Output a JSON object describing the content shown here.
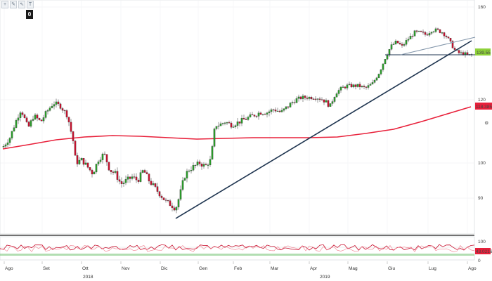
{
  "toolbar": {
    "icons": [
      "plus-icon",
      "pencil-icon",
      "pointer-icon",
      "text-icon"
    ],
    "glyphs": [
      "+",
      "✎",
      "⇖",
      "T"
    ],
    "badge": "0"
  },
  "chart_data": {
    "type": "candlestick",
    "y_axis_ticks": [
      "160",
      "120",
      "100",
      "90"
    ],
    "y_axis_values": [
      160,
      120,
      100,
      90
    ],
    "x_axis_months": [
      "Ago",
      "Set",
      "Ott",
      "Nov",
      "Dic",
      "Gen",
      "Feb",
      "Mar",
      "Apr",
      "Mag",
      "Giu",
      "Lug",
      "Ago"
    ],
    "x_axis_years": [
      "2018",
      "2019"
    ],
    "price_label": "139.55",
    "ma_label": "118.3853",
    "osc_ticks": [
      "100",
      "0"
    ],
    "osc_label": "43.0216",
    "colors": {
      "up": "#2a9d2a",
      "down": "#c8102e",
      "ma": "#e8203a",
      "trend": "#1f3550",
      "hline": "#1f3550",
      "osc_band": "#7ec87e"
    }
  }
}
